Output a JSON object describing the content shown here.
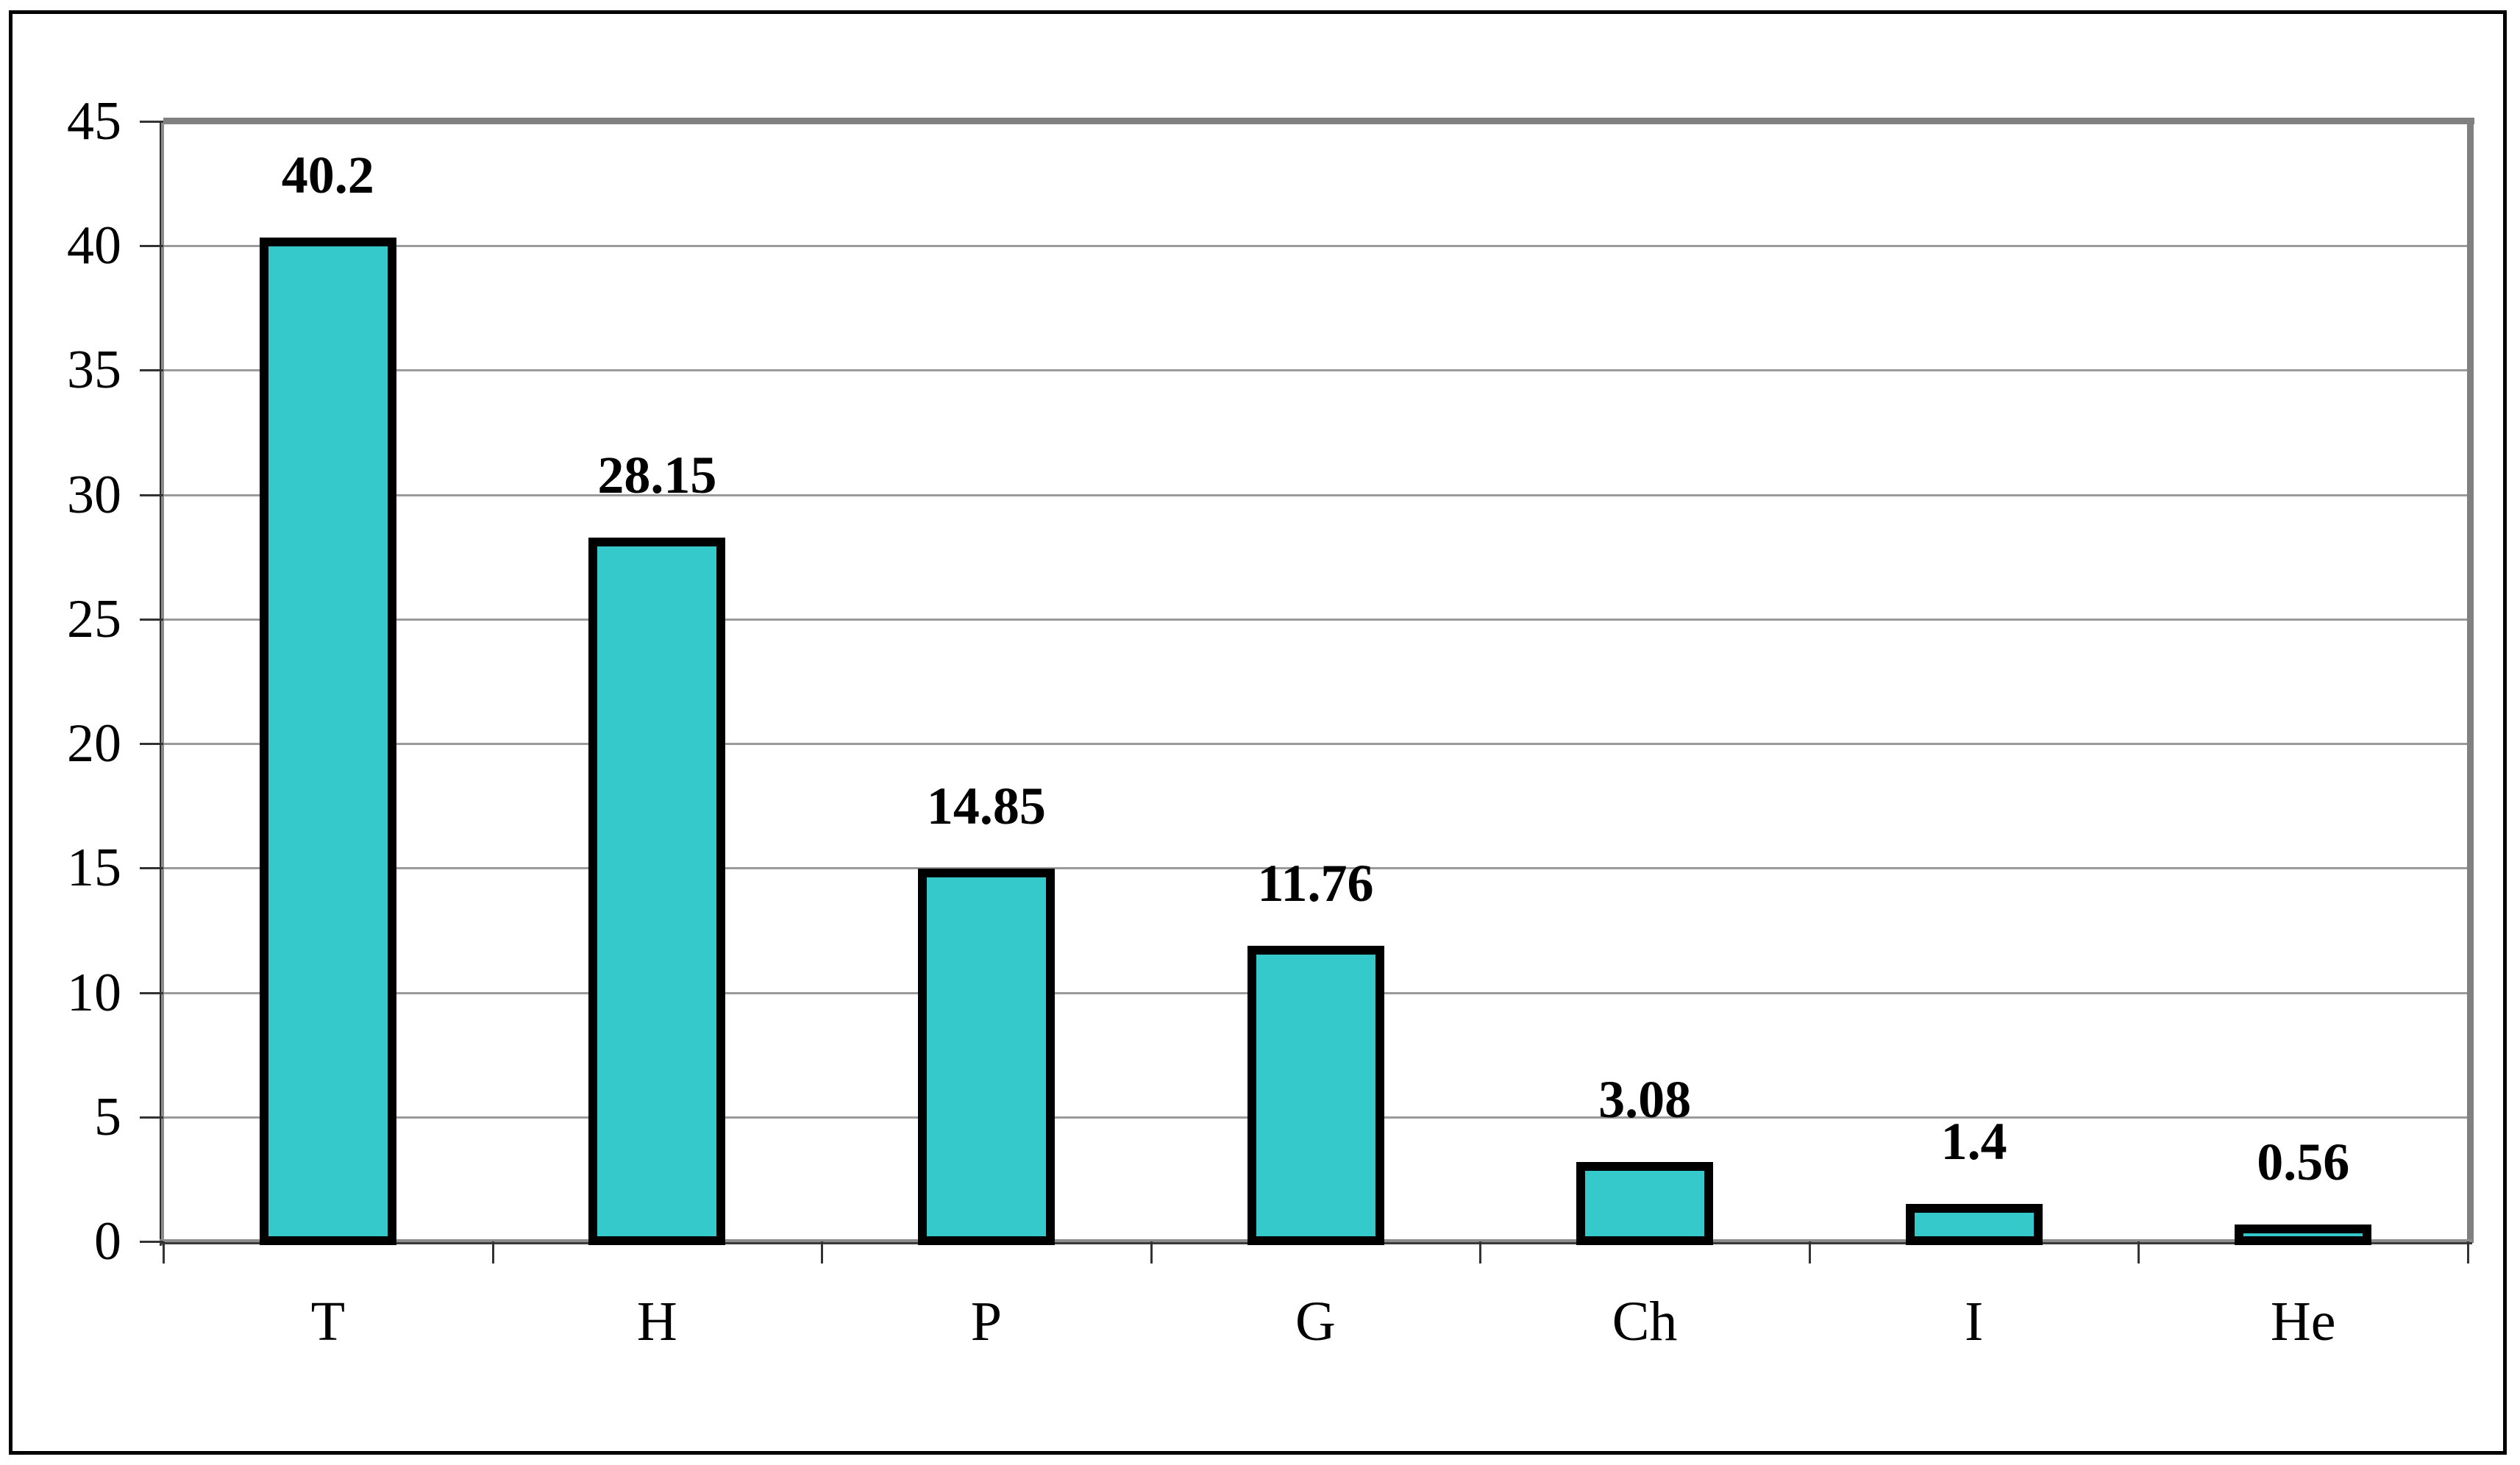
{
  "chart_data": {
    "type": "bar",
    "title": "",
    "xlabel": "",
    "ylabel": "",
    "categories": [
      "T",
      "H",
      "P",
      "G",
      "Ch",
      "I",
      "He"
    ],
    "values": [
      40.2,
      28.15,
      14.85,
      11.76,
      3.08,
      1.4,
      0.56
    ],
    "value_labels": [
      "40.2",
      "28.15",
      "14.85",
      "11.76",
      "3.08",
      "1.4",
      "0.56"
    ],
    "ylim": [
      0,
      45
    ],
    "yticks": [
      0,
      5,
      10,
      15,
      20,
      25,
      30,
      35,
      40,
      45
    ],
    "grid": true,
    "legend": false,
    "colors": {
      "bar_fill": "#36C9CC",
      "bar_border": "#000000",
      "gridline": "#9b9b9b",
      "plot_border": "#808080",
      "tick": "#333333",
      "text": "#000000",
      "outer_frame": "#000000"
    }
  }
}
